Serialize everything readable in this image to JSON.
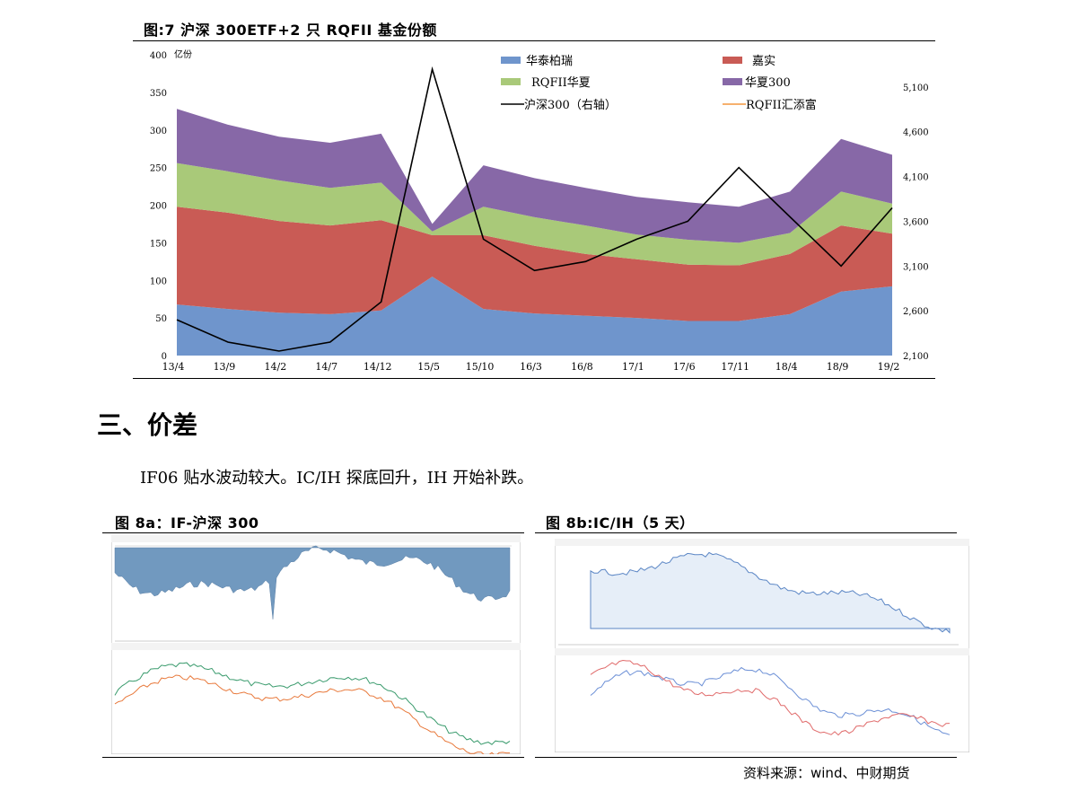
{
  "figure7": {
    "title": "图:7 沪深 300ETF+2 只 RQFII 基金份额",
    "legend": {
      "hua_tai": "华泰柏瑞",
      "jia_shi": "嘉实",
      "rqfii_hx": "RQFII华夏",
      "hx300": "华夏300",
      "hs300": "沪深300（右轴）",
      "rqfii_ht": "RQFII汇添富"
    },
    "left_unit": "亿份",
    "colors": {
      "hua_tai": "#6f95cc",
      "jia_shi": "#c95b55",
      "rqfii_hx": "#a9c979",
      "hx300": "#8768a7",
      "hs300": "#000000",
      "rqfii_ht": "#f4973e"
    }
  },
  "chart_data": {
    "type": "area",
    "x": [
      "13/4",
      "13/9",
      "14/2",
      "14/7",
      "14/12",
      "15/5",
      "15/10",
      "16/3",
      "16/8",
      "17/1",
      "17/6",
      "17/11",
      "18/4",
      "18/9",
      "19/2"
    ],
    "left_ticks": [
      "0",
      "50",
      "100",
      "150",
      "200",
      "250",
      "300",
      "350",
      "400"
    ],
    "right_ticks": [
      "2,100",
      "2,600",
      "3,100",
      "3,600",
      "4,100",
      "4,600",
      "5,100"
    ],
    "ylim_left": [
      0,
      400
    ],
    "ylim_right": [
      2100,
      5460
    ],
    "series": [
      {
        "name": "华泰柏瑞",
        "values": [
          68,
          62,
          57,
          55,
          60,
          105,
          62,
          56,
          53,
          50,
          46,
          46,
          55,
          85,
          92
        ]
      },
      {
        "name": "嘉实",
        "values": [
          130,
          128,
          122,
          118,
          120,
          55,
          98,
          90,
          82,
          78,
          75,
          74,
          80,
          88,
          70
        ]
      },
      {
        "name": "RQFII华夏",
        "values": [
          58,
          55,
          54,
          50,
          50,
          5,
          38,
          38,
          38,
          33,
          33,
          30,
          28,
          45,
          40
        ]
      },
      {
        "name": "华夏300",
        "values": [
          72,
          62,
          58,
          60,
          65,
          10,
          55,
          52,
          50,
          50,
          50,
          48,
          55,
          70,
          65
        ]
      },
      {
        "name": "沪深300（右轴）",
        "values": [
          2500,
          2250,
          2150,
          2250,
          2700,
          5300,
          3400,
          3050,
          3150,
          3400,
          3600,
          4200,
          3650,
          3100,
          3750
        ]
      },
      {
        "name": "RQFII汇添富",
        "values": [
          0,
          0,
          0,
          0,
          0,
          0,
          0,
          0,
          0,
          0,
          0,
          0,
          0,
          0,
          0
        ]
      }
    ]
  },
  "section": {
    "heading": "三、价差"
  },
  "paragraph": "IF06 贴水波动较大。IC/IH 探底回升，IH 开始补跌。",
  "figure8a": {
    "title": "图 8a：IF-沪深 300"
  },
  "figure8b": {
    "title": "图 8b:IC/IH（5 天）"
  },
  "source": "资料来源：wind、中财期货"
}
